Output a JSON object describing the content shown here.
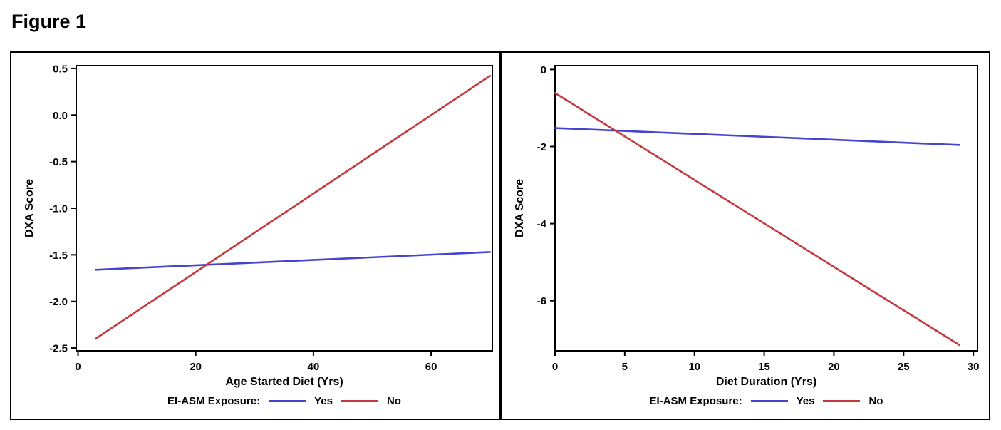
{
  "title": "Figure 1",
  "legend": {
    "label": "EI-ASM Exposure:",
    "items": [
      {
        "name": "Yes",
        "color": "#4444cf"
      },
      {
        "name": "No",
        "color": "#c23a3e"
      }
    ]
  },
  "chart_data": [
    {
      "type": "line",
      "title": "",
      "xlabel": "Age Started Diet (Yrs)",
      "ylabel": "DXA Score",
      "xlim": [
        -0.3,
        70.4
      ],
      "ylim": [
        -2.53,
        0.53
      ],
      "xticks": [
        0,
        20,
        40,
        60
      ],
      "xtick_labels": [
        "0",
        "20",
        "40",
        "60"
      ],
      "yticks": [
        0.5,
        0.0,
        -0.5,
        -1.0,
        -1.5,
        -2.0,
        -2.5
      ],
      "ytick_labels": [
        "0.5",
        "0.0",
        "-0.5",
        "-1.0",
        "-1.5",
        "-2.0",
        "-2.5"
      ],
      "grid": false,
      "legend_position": "bottom",
      "series": [
        {
          "name": "Yes",
          "x": [
            3,
            70
          ],
          "y": [
            -1.66,
            -1.47
          ]
        },
        {
          "name": "No",
          "x": [
            3,
            70
          ],
          "y": [
            -2.4,
            0.42
          ]
        }
      ]
    },
    {
      "type": "line",
      "title": "",
      "xlabel": "Diet Duration (Yrs)",
      "ylabel": "DXA Score",
      "xlim": [
        0,
        30.3
      ],
      "ylim": [
        -7.3,
        0.1
      ],
      "xticks": [
        0,
        5,
        10,
        15,
        20,
        25,
        30
      ],
      "xtick_labels": [
        "0",
        "5",
        "10",
        "15",
        "20",
        "25",
        "30"
      ],
      "yticks": [
        0,
        -2,
        -4,
        -6
      ],
      "ytick_labels": [
        "0",
        "-2",
        "-4",
        "-6"
      ],
      "grid": false,
      "legend_position": "bottom",
      "series": [
        {
          "name": "Yes",
          "x": [
            0,
            29
          ],
          "y": [
            -1.52,
            -1.96
          ]
        },
        {
          "name": "No",
          "x": [
            0,
            29
          ],
          "y": [
            -0.61,
            -7.15
          ]
        }
      ]
    }
  ]
}
